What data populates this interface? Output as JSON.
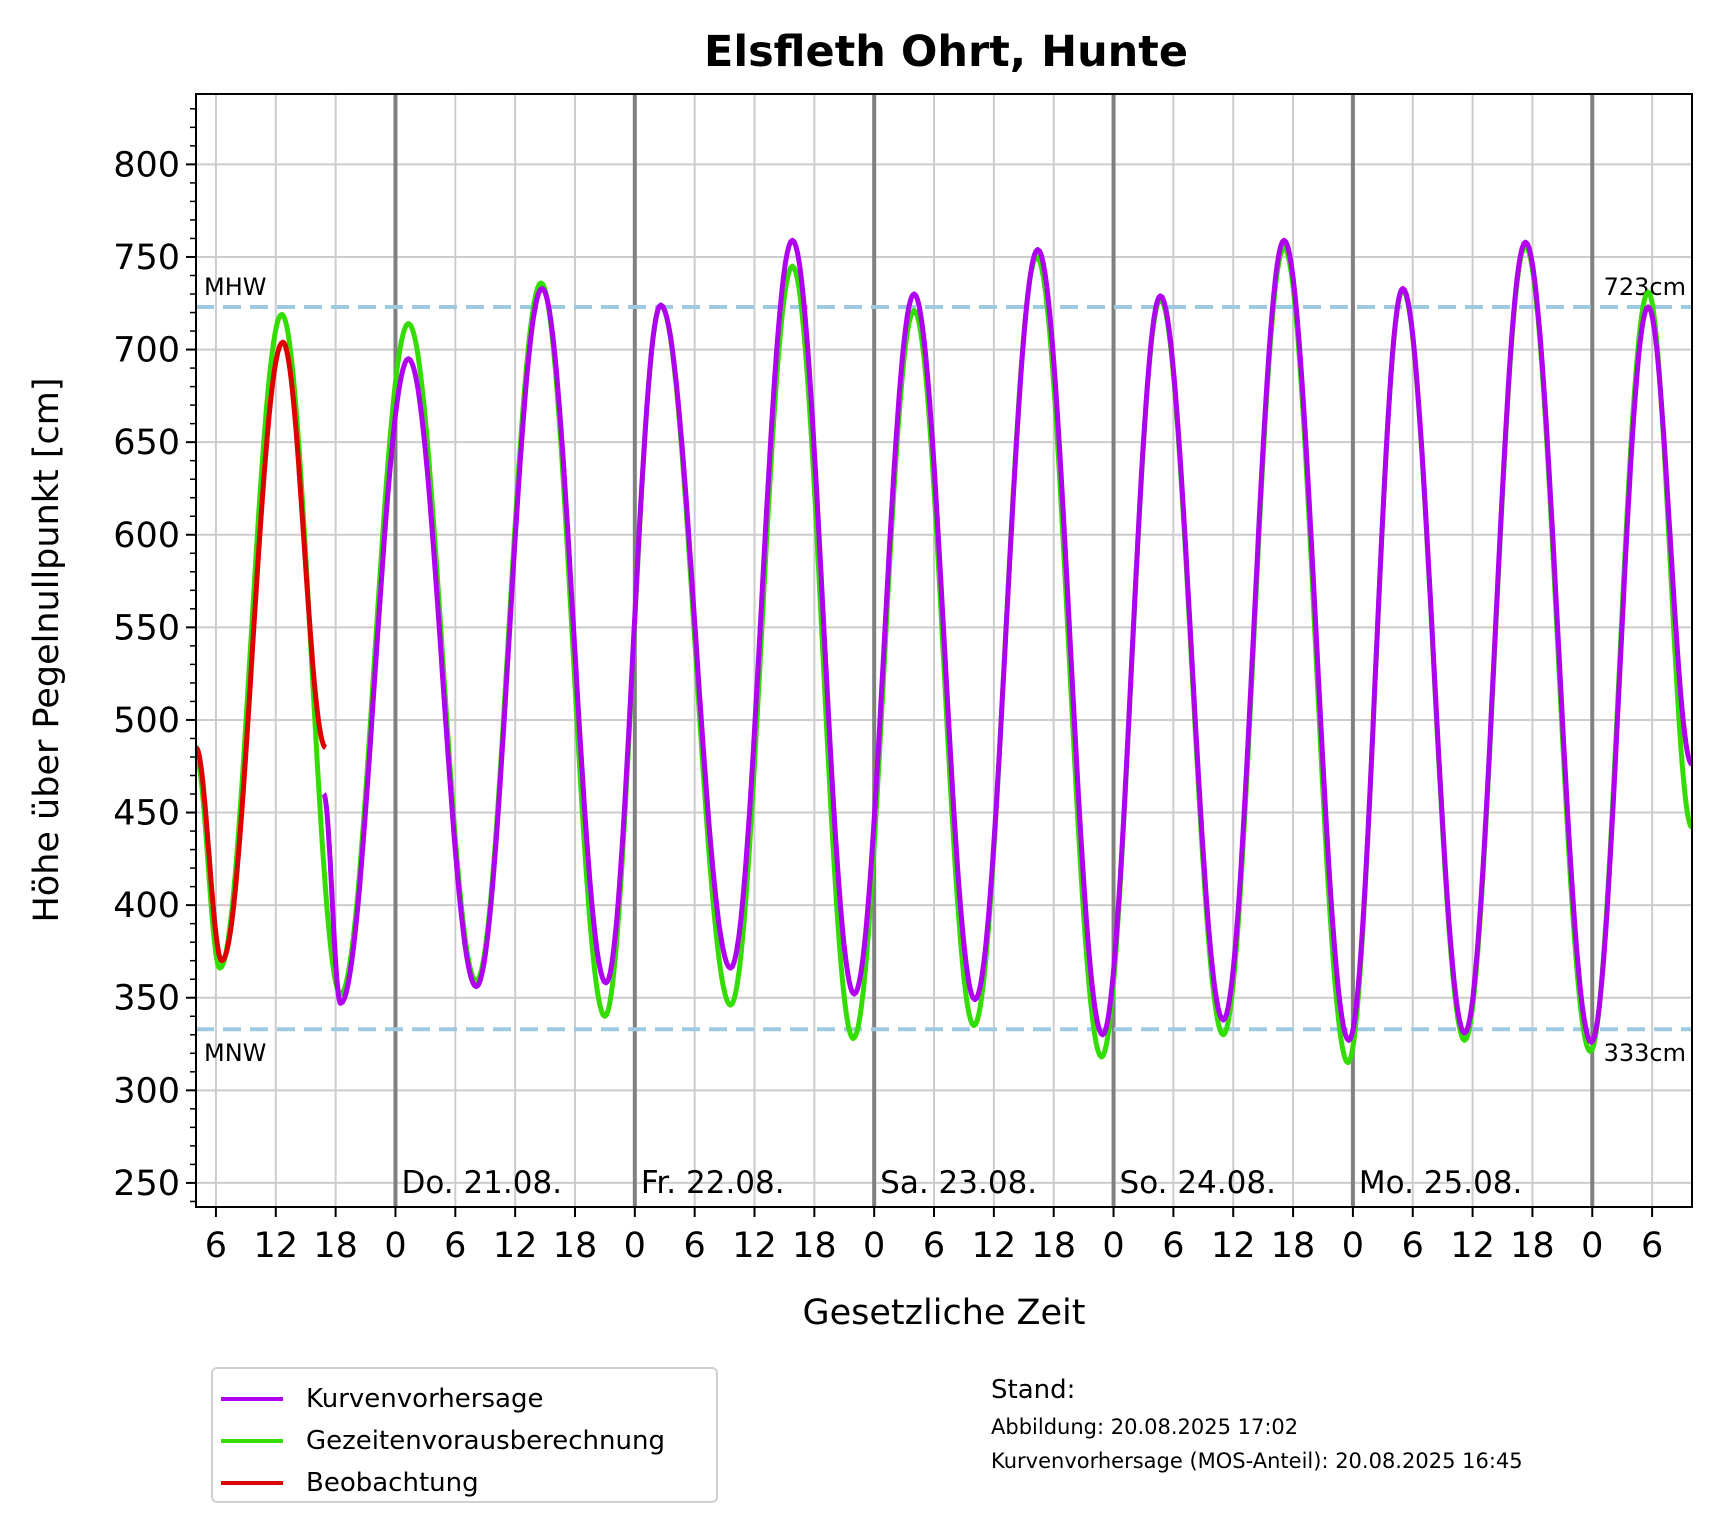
{
  "chart_data": {
    "type": "line",
    "title": "Elsfleth Ohrt, Hunte",
    "xlabel": "Gesetzliche Zeit",
    "ylabel": "Höhe über Pegelnullpunkt [cm]",
    "ylim": [
      237,
      838
    ],
    "y_ticks": [
      250,
      300,
      350,
      400,
      450,
      500,
      550,
      600,
      650,
      700,
      750,
      800
    ],
    "y_tick_labels": [
      "250",
      "300",
      "350",
      "400",
      "450",
      "500",
      "550",
      "600",
      "650",
      "700",
      "750",
      "800"
    ],
    "x_unit": "hours since 20.08. 00:00",
    "xlim": [
      4,
      154
    ],
    "x_ticks": [
      6,
      12,
      18,
      24,
      30,
      36,
      42,
      48,
      54,
      60,
      66,
      72,
      78,
      84,
      90,
      96,
      102,
      108,
      114,
      120,
      126,
      132,
      138,
      144,
      150
    ],
    "x_tick_labels": [
      "6",
      "12",
      "18",
      "0",
      "6",
      "12",
      "18",
      "0",
      "6",
      "12",
      "18",
      "0",
      "6",
      "12",
      "18",
      "0",
      "6",
      "12",
      "18",
      "0",
      "6",
      "12",
      "18",
      "0",
      "6"
    ],
    "day_separators": [
      24,
      48,
      72,
      96,
      120,
      144
    ],
    "day_labels": [
      {
        "x": 24,
        "text": "Do. 21.08."
      },
      {
        "x": 48,
        "text": "Fr. 22.08."
      },
      {
        "x": 72,
        "text": "Sa. 23.08."
      },
      {
        "x": 96,
        "text": "So. 24.08."
      },
      {
        "x": 120,
        "text": "Mo. 25.08."
      }
    ],
    "reference_lines": [
      {
        "name": "MHW",
        "value": 723,
        "label_left": "MHW",
        "label_right": "723cm",
        "color": "#9ecae1"
      },
      {
        "name": "MNW",
        "value": 333,
        "label_left": "MNW",
        "label_right": "333cm",
        "color": "#9ecae1"
      }
    ],
    "grid": true,
    "legend_position": "below-left",
    "series": [
      {
        "name": "Kurvenvorhersage",
        "color": "#b000f0",
        "extremes": [
          [
            16.8,
            460
          ],
          [
            18.5,
            347
          ],
          [
            25.3,
            695
          ],
          [
            32.1,
            356
          ],
          [
            38.7,
            733
          ],
          [
            45.1,
            358
          ],
          [
            50.6,
            724
          ],
          [
            57.6,
            366
          ],
          [
            63.8,
            759
          ],
          [
            70.0,
            352
          ],
          [
            76.0,
            730
          ],
          [
            82.1,
            349
          ],
          [
            88.4,
            754
          ],
          [
            94.9,
            330
          ],
          [
            100.7,
            729
          ],
          [
            107.0,
            338
          ],
          [
            113.1,
            759
          ],
          [
            119.6,
            327
          ],
          [
            125.0,
            733
          ],
          [
            131.2,
            331
          ],
          [
            137.3,
            758
          ],
          [
            143.9,
            326
          ],
          [
            149.6,
            723
          ],
          [
            154.0,
            476
          ]
        ]
      },
      {
        "name": "Gezeitenvorausberechnung",
        "color": "#33dd00",
        "extremes": [
          [
            4.0,
            480
          ],
          [
            6.4,
            366
          ],
          [
            12.6,
            719
          ],
          [
            18.5,
            352
          ],
          [
            25.3,
            714
          ],
          [
            32.1,
            359
          ],
          [
            38.6,
            736
          ],
          [
            45.0,
            340
          ],
          [
            50.6,
            724
          ],
          [
            57.6,
            346
          ],
          [
            63.8,
            745
          ],
          [
            69.9,
            328
          ],
          [
            76.0,
            721
          ],
          [
            82.0,
            335
          ],
          [
            88.3,
            750
          ],
          [
            94.8,
            318
          ],
          [
            100.7,
            727
          ],
          [
            107.0,
            330
          ],
          [
            113.1,
            755
          ],
          [
            119.5,
            315
          ],
          [
            125.0,
            732
          ],
          [
            131.2,
            327
          ],
          [
            137.3,
            756
          ],
          [
            143.8,
            321
          ],
          [
            149.6,
            731
          ],
          [
            154.0,
            442
          ]
        ]
      },
      {
        "name": "Beobachtung",
        "color": "#dd0000",
        "extremes": [
          [
            4.0,
            485
          ],
          [
            6.6,
            370
          ],
          [
            12.7,
            704
          ],
          [
            17.0,
            485
          ]
        ]
      }
    ]
  },
  "legend": {
    "items": [
      {
        "label": "Kurvenvorhersage",
        "color": "#b000f0"
      },
      {
        "label": "Gezeitenvorausberechnung",
        "color": "#33dd00"
      },
      {
        "label": "Beobachtung",
        "color": "#dd0000"
      }
    ]
  },
  "stand": {
    "title": "Stand:",
    "abbildung": "Abbildung: 20.08.2025 17:02",
    "kurvenvorhersage": "Kurvenvorhersage (MOS-Anteil): 20.08.2025 16:45"
  }
}
